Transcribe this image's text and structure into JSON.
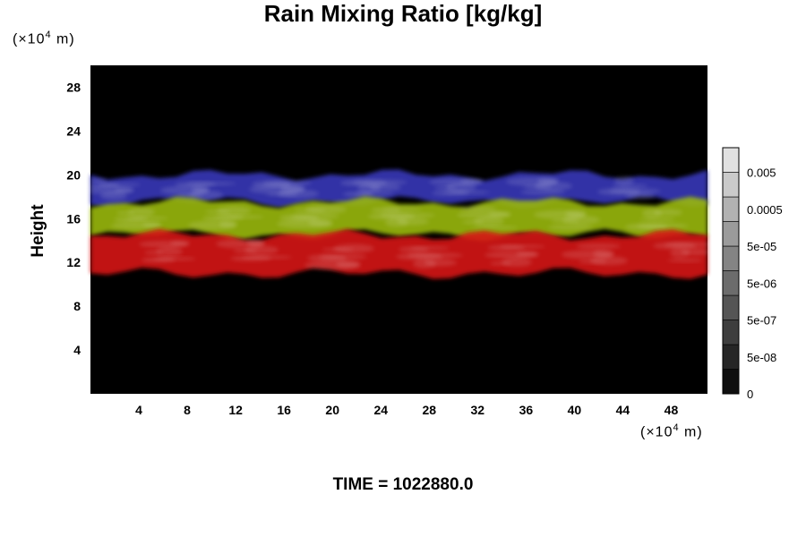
{
  "chart_data": {
    "type": "heatmap",
    "title": "Rain Mixing Ratio [kg/kg]",
    "ylabel": "Height",
    "xunit": {
      "prefix": "(×10",
      "exp": "4",
      "suffix": " m)"
    },
    "yunit": {
      "prefix": "(×10",
      "exp": "4",
      "suffix": " m)"
    },
    "xlim": [
      0,
      51
    ],
    "ylim": [
      0,
      30
    ],
    "x_ticks": [
      4,
      8,
      12,
      16,
      20,
      24,
      28,
      32,
      36,
      40,
      44,
      48
    ],
    "y_ticks": [
      4,
      8,
      12,
      16,
      20,
      24,
      28
    ],
    "colorbar": {
      "levels": [
        0,
        5e-11,
        5e-10,
        5e-09,
        5e-08,
        5e-07,
        5e-06,
        5e-05,
        0.0005,
        0.005,
        0.05
      ],
      "tick_labels": [
        "0",
        "5e-08",
        "5e-07",
        "5e-06",
        "5e-05",
        "0.0005",
        "0.005"
      ]
    },
    "bands": [
      {
        "color": "#3838b8",
        "y_range": [
          17.5,
          20
        ]
      },
      {
        "color": "#9ab810",
        "y_range": [
          14.5,
          17.5
        ]
      },
      {
        "color": "#d61515",
        "y_range": [
          11,
          14.5
        ]
      }
    ],
    "time_label": "TIME = 1022880.0"
  }
}
